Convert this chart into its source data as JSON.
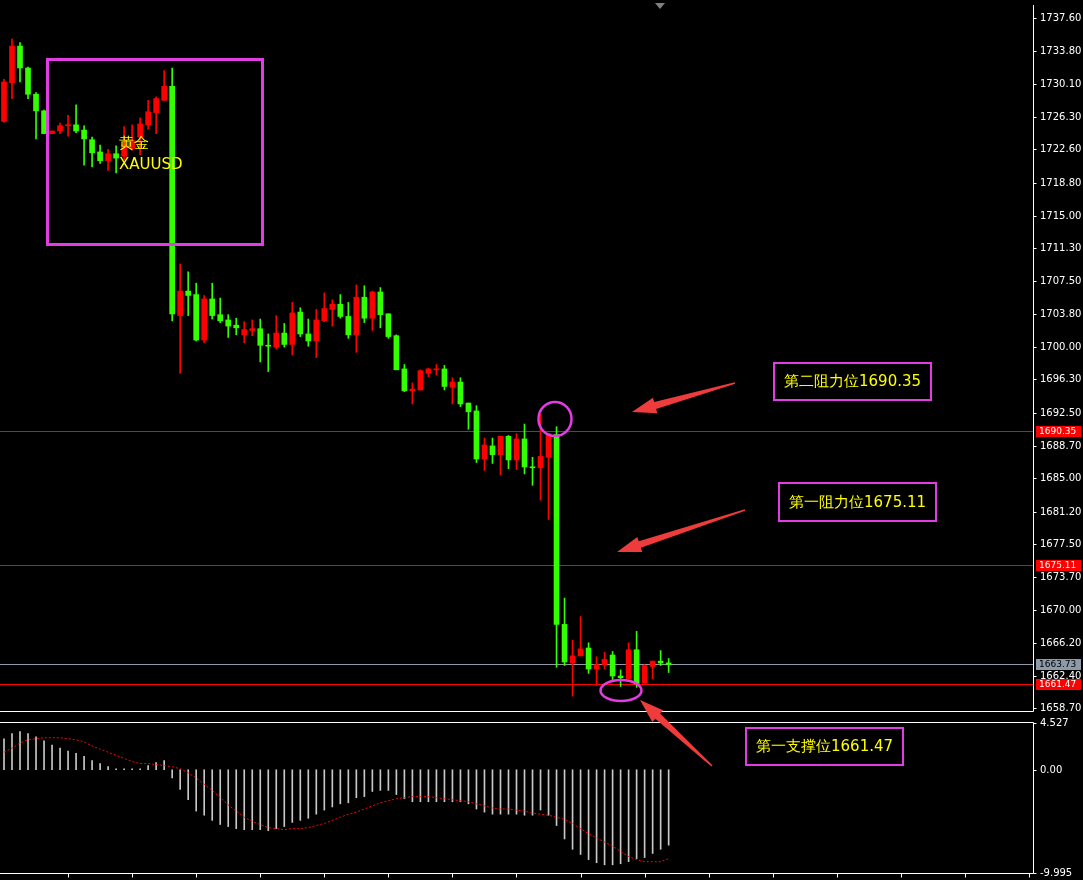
{
  "chart_data": [
    {
      "type": "candlestick",
      "categories": [
        null,
        null,
        null,
        null,
        null,
        null,
        null,
        null,
        null,
        null,
        null,
        null,
        null,
        null,
        null,
        null,
        null,
        null,
        null,
        null,
        null,
        null,
        null,
        null,
        null,
        null,
        null,
        null,
        null,
        null,
        null,
        null,
        null,
        null,
        null,
        null,
        null,
        null,
        null,
        null,
        null,
        null,
        null,
        null,
        null,
        null,
        null,
        null,
        null,
        null,
        null,
        null,
        null,
        null,
        null,
        null,
        null,
        null,
        null,
        null,
        null,
        null,
        null,
        null,
        null,
        null,
        null,
        null,
        null,
        null,
        null,
        null,
        null,
        null,
        null,
        null,
        null,
        null,
        null,
        null,
        null,
        null,
        null,
        null,
        null,
        null,
        null,
        null,
        null,
        null,
        null,
        null,
        null,
        null,
        null,
        null,
        null,
        null,
        null,
        null,
        null,
        null,
        null,
        null,
        null,
        null,
        null,
        null,
        null,
        null,
        null,
        null,
        null,
        null,
        null,
        null,
        null,
        null,
        null,
        null,
        null,
        null,
        null,
        null,
        null,
        null,
        null,
        null,
        null
      ],
      "ohlc": [
        [
          1725.8,
          1730.6,
          1725.7,
          1730.3
        ],
        [
          1730.2,
          1735.2,
          1728.4,
          1734.4
        ],
        [
          1734.4,
          1734.8,
          1730.3,
          1731.9
        ],
        [
          1731.9,
          1732.0,
          1728.4,
          1728.9
        ],
        [
          1728.9,
          1729.1,
          1723.8,
          1727.0
        ],
        [
          1727.0,
          1727.1,
          1724.4,
          1724.4
        ],
        [
          1724.4,
          1724.7,
          1724.4,
          1724.7
        ],
        [
          1724.7,
          1725.6,
          1724.4,
          1725.3
        ],
        [
          1725.3,
          1726.5,
          1724.1,
          1725.4
        ],
        [
          1725.4,
          1727.7,
          1724.5,
          1724.7
        ],
        [
          1724.8,
          1725.3,
          1720.8,
          1723.8
        ],
        [
          1723.7,
          1724.0,
          1720.6,
          1722.2
        ],
        [
          1722.3,
          1723.1,
          1721.0,
          1721.3
        ],
        [
          1721.3,
          1722.6,
          1720.2,
          1722.1
        ],
        [
          1722.1,
          1723.0,
          1719.9,
          1721.6
        ],
        [
          1721.8,
          1725.2,
          1721.4,
          1723.1
        ],
        [
          1722.7,
          1725.4,
          1722.5,
          1723.6
        ],
        [
          1724.0,
          1726.2,
          1722.0,
          1725.5
        ],
        [
          1725.4,
          1728.2,
          1724.9,
          1726.9
        ],
        [
          1726.8,
          1728.6,
          1724.4,
          1728.4
        ],
        [
          1728.2,
          1731.6,
          1728.2,
          1729.8
        ],
        [
          1729.8,
          1731.9,
          1703.0,
          1703.8
        ],
        [
          1703.6,
          1709.5,
          1697.0,
          1706.4
        ],
        [
          1706.4,
          1708.6,
          1703.6,
          1705.9
        ],
        [
          1706.0,
          1707.3,
          1700.7,
          1700.8
        ],
        [
          1700.8,
          1705.9,
          1700.5,
          1705.5
        ],
        [
          1705.5,
          1707.3,
          1703.2,
          1703.6
        ],
        [
          1703.7,
          1705.6,
          1702.8,
          1703.0
        ],
        [
          1703.1,
          1703.7,
          1701.1,
          1702.4
        ],
        [
          1702.5,
          1703.3,
          1701.4,
          1702.2
        ],
        [
          1701.4,
          1702.9,
          1700.5,
          1702.0
        ],
        [
          1701.9,
          1703.1,
          1701.3,
          1702.1
        ],
        [
          1702.1,
          1703.2,
          1698.3,
          1700.2
        ],
        [
          1700.2,
          1701.5,
          1697.2,
          1700.1
        ],
        [
          1700.0,
          1703.6,
          1699.8,
          1701.6
        ],
        [
          1701.6,
          1702.7,
          1700.0,
          1700.3
        ],
        [
          1700.3,
          1705.1,
          1699.1,
          1703.9
        ],
        [
          1704.0,
          1704.5,
          1701.2,
          1701.5
        ],
        [
          1701.5,
          1703.2,
          1700.1,
          1700.7
        ],
        [
          1700.7,
          1704.3,
          1698.8,
          1703.1
        ],
        [
          1703.0,
          1706.2,
          1702.9,
          1704.4
        ],
        [
          1704.3,
          1705.4,
          1702.4,
          1704.9
        ],
        [
          1704.9,
          1706.0,
          1703.3,
          1703.5
        ],
        [
          1703.5,
          1705.1,
          1701.0,
          1701.4
        ],
        [
          1701.4,
          1707.1,
          1699.4,
          1705.7
        ],
        [
          1705.7,
          1707.0,
          1702.8,
          1703.3
        ],
        [
          1703.3,
          1706.4,
          1701.9,
          1706.3
        ],
        [
          1706.3,
          1706.8,
          1702.2,
          1703.7
        ],
        [
          1703.8,
          1703.8,
          1701.0,
          1701.2
        ],
        [
          1701.3,
          1701.4,
          1697.4,
          1697.4
        ],
        [
          1697.5,
          1698.0,
          1694.9,
          1695.0
        ],
        [
          1695.0,
          1695.9,
          1693.5,
          1695.2
        ],
        [
          1695.1,
          1697.4,
          1695.1,
          1697.3
        ],
        [
          1697.0,
          1697.6,
          1696.6,
          1697.5
        ],
        [
          1697.4,
          1698.0,
          1696.8,
          1697.5
        ],
        [
          1697.5,
          1697.9,
          1695.1,
          1695.5
        ],
        [
          1695.4,
          1696.5,
          1693.5,
          1696.0
        ],
        [
          1696.0,
          1696.5,
          1693.2,
          1693.5
        ],
        [
          1693.6,
          1693.6,
          1690.6,
          1692.6
        ],
        [
          1692.7,
          1693.3,
          1686.8,
          1687.2
        ],
        [
          1687.2,
          1689.6,
          1685.9,
          1688.8
        ],
        [
          1688.7,
          1689.6,
          1686.7,
          1687.7
        ],
        [
          1687.7,
          1689.8,
          1685.4,
          1689.8
        ],
        [
          1689.8,
          1689.9,
          1686.1,
          1687.1
        ],
        [
          1687.1,
          1690.1,
          1686.0,
          1689.5
        ],
        [
          1689.5,
          1691.2,
          1685.5,
          1686.3
        ],
        [
          1686.3,
          1687.4,
          1684.2,
          1686.2
        ],
        [
          1686.2,
          1692.3,
          1682.5,
          1687.5
        ],
        [
          1687.4,
          1690.1,
          1680.3,
          1690.1
        ],
        [
          1690.0,
          1690.9,
          1663.4,
          1668.3
        ],
        [
          1668.3,
          1671.3,
          1663.6,
          1664.0
        ],
        [
          1663.9,
          1666.5,
          1660.1,
          1664.7
        ],
        [
          1664.7,
          1669.2,
          1664.7,
          1665.5
        ],
        [
          1665.6,
          1666.2,
          1662.7,
          1663.2
        ],
        [
          1663.2,
          1664.6,
          1661.3,
          1663.7
        ],
        [
          1663.7,
          1665.1,
          1663.2,
          1664.3
        ],
        [
          1664.8,
          1665.2,
          1661.9,
          1662.4
        ],
        [
          1662.4,
          1663.1,
          1661.2,
          1662.2
        ],
        [
          1662.1,
          1666.2,
          1662.1,
          1665.4
        ],
        [
          1665.4,
          1667.5,
          1661.1,
          1661.5
        ],
        [
          1661.6,
          1663.7,
          1661.6,
          1663.6
        ],
        [
          1663.5,
          1664.1,
          1662.1,
          1664.1
        ],
        [
          1664.1,
          1665.3,
          1663.6,
          1663.9
        ],
        [
          1663.9,
          1664.4,
          1662.8,
          1663.7
        ],
        null,
        null,
        null,
        null,
        null,
        null,
        null,
        null,
        null,
        null,
        null,
        null,
        null,
        null,
        null,
        null,
        null,
        null,
        null,
        null,
        null,
        null,
        null,
        null,
        null,
        null,
        null,
        null,
        null,
        null,
        null,
        null,
        null,
        null,
        null,
        null,
        null,
        null,
        null,
        null,
        null,
        null,
        null,
        null,
        null
      ],
      "colors": [
        "#ff0000",
        "#ff0000",
        "#33ff00",
        "#33ff00",
        "#33ff00",
        "#33ff00",
        "#ff0000",
        "#ff0000",
        "#ff0000",
        "#33ff00",
        "#33ff00",
        "#33ff00",
        "#33ff00",
        "#ff0000",
        "#33ff00",
        "#ff0000",
        "#ff0000",
        "#ff0000",
        "#ff0000",
        "#ff0000",
        "#ff0000",
        "#33ff00",
        "#ff0000",
        "#33ff00",
        "#33ff00",
        "#ff0000",
        "#33ff00",
        "#33ff00",
        "#33ff00",
        "#33ff00",
        "#ff0000",
        "#ff0000",
        "#33ff00",
        "#33ff00",
        "#ff0000",
        "#33ff00",
        "#ff0000",
        "#33ff00",
        "#33ff00",
        "#ff0000",
        "#ff0000",
        "#ff0000",
        "#33ff00",
        "#33ff00",
        "#ff0000",
        "#33ff00",
        "#ff0000",
        "#33ff00",
        "#33ff00",
        "#33ff00",
        "#33ff00",
        "#ff0000",
        "#ff0000",
        "#ff0000",
        "#ff0000",
        "#33ff00",
        "#ff0000",
        "#33ff00",
        "#33ff00",
        "#33ff00",
        "#ff0000",
        "#33ff00",
        "#ff0000",
        "#33ff00",
        "#ff0000",
        "#33ff00",
        "#33ff00",
        "#ff0000",
        "#ff0000",
        "#33ff00",
        "#33ff00",
        "#ff0000",
        "#ff0000",
        "#33ff00",
        "#ff0000",
        "#ff0000",
        "#33ff00",
        "#33ff00",
        "#ff0000",
        "#33ff00",
        "#ff0000",
        "#ff0000",
        "#33ff00",
        "#33ff00",
        null,
        null,
        null,
        null,
        null,
        null,
        null,
        null,
        null,
        null,
        null,
        null,
        null,
        null,
        null,
        null,
        null,
        null,
        null,
        null,
        null,
        null,
        null,
        null,
        null,
        null,
        null,
        null,
        null,
        null,
        null,
        null,
        null,
        null,
        null,
        null,
        null,
        null,
        null,
        null,
        null,
        null,
        null,
        null,
        null
      ],
      "ylim": [
        1658.4,
        1739.1
      ],
      "yticks": [
        {
          "value": 1737.6,
          "label": "1737.60"
        },
        {
          "value": 1733.8,
          "label": "1733.80"
        },
        {
          "value": 1730.1,
          "label": "1730.10"
        },
        {
          "value": 1726.3,
          "label": "1726.30"
        },
        {
          "value": 1722.6,
          "label": "1722.60"
        },
        {
          "value": 1718.8,
          "label": "1718.80"
        },
        {
          "value": 1715,
          "label": "1715.00"
        },
        {
          "value": 1711.3,
          "label": "1711.30"
        },
        {
          "value": 1707.5,
          "label": "1707.50"
        },
        {
          "value": 1703.8,
          "label": "1703.80"
        },
        {
          "value": 1700,
          "label": "1700.00"
        },
        {
          "value": 1696.3,
          "label": "1696.30"
        },
        {
          "value": 1692.5,
          "label": "1692.50"
        },
        {
          "value": 1688.7,
          "label": "1688.70"
        },
        {
          "value": 1685,
          "label": "1685.00"
        },
        {
          "value": 1681.2,
          "label": "1681.20"
        },
        {
          "value": 1677.5,
          "label": "1677.50"
        },
        {
          "value": 1673.7,
          "label": "1673.70"
        },
        {
          "value": 1670,
          "label": "1670.00"
        },
        {
          "value": 1666.2,
          "label": "1666.20"
        },
        {
          "value": 1662.4,
          "label": "1662.40"
        },
        {
          "value": 1658.7,
          "label": "1658.70"
        }
      ],
      "tick_labels": "y",
      "ref_lines": [
        {
          "axis": "y",
          "value": 1690.35,
          "label": "1690.35",
          "color": "#ff0000"
        },
        {
          "axis": "y",
          "value": 1675.11,
          "label": "1675.11",
          "color": "#ff0000"
        },
        {
          "axis": "y",
          "value": 1663.73,
          "label": "1663.73",
          "color": "#8c9aaa"
        },
        {
          "axis": "y",
          "value": 1661.47,
          "label": "1661.47",
          "color": "#ff0000"
        }
      ],
      "annotations": [
        "第二阻力位1690.35",
        "第一阻力位1675.11",
        "第一支撑位1661.47",
        "黄金",
        "XAUUSD"
      ]
    },
    {
      "type": "bar",
      "categories": [
        null,
        null,
        null,
        null,
        null,
        null,
        null,
        null,
        null,
        null,
        null,
        null,
        null,
        null,
        null,
        null,
        null,
        null,
        null,
        null,
        null,
        null,
        null,
        null,
        null,
        null,
        null,
        null,
        null,
        null,
        null,
        null,
        null,
        null,
        null,
        null,
        null,
        null,
        null,
        null,
        null,
        null,
        null,
        null,
        null,
        null,
        null,
        null,
        null,
        null,
        null,
        null,
        null,
        null,
        null,
        null,
        null,
        null,
        null,
        null,
        null,
        null,
        null,
        null,
        null,
        null,
        null,
        null,
        null,
        null,
        null,
        null,
        null,
        null,
        null,
        null,
        null,
        null,
        null,
        null,
        null,
        null,
        null,
        null,
        null,
        null,
        null,
        null,
        null,
        null,
        null,
        null,
        null,
        null,
        null,
        null,
        null,
        null,
        null,
        null,
        null,
        null,
        null,
        null,
        null,
        null,
        null,
        null,
        null,
        null,
        null,
        null,
        null,
        null,
        null,
        null,
        null,
        null,
        null,
        null,
        null,
        null,
        null,
        null,
        null,
        null,
        null,
        null,
        null
      ],
      "series": [
        {
          "color": "#c8c8c8",
          "values": [
            3.0,
            3.5,
            3.7,
            3.5,
            3.2,
            2.8,
            2.4,
            2.1,
            1.8,
            1.6,
            1.3,
            0.9,
            0.6,
            0.3,
            0.1,
            0.1,
            0.1,
            0.1,
            0.4,
            0.7,
            0.9,
            -0.8,
            -1.9,
            -2.9,
            -4.0,
            -4.4,
            -4.9,
            -5.3,
            -5.5,
            -5.7,
            -5.8,
            -5.8,
            -5.8,
            -5.9,
            -5.7,
            -5.5,
            -5.1,
            -4.9,
            -4.7,
            -4.3,
            -3.9,
            -3.6,
            -3.3,
            -3.2,
            -2.7,
            -2.6,
            -2.1,
            -2.0,
            -2.0,
            -2.4,
            -2.8,
            -3.1,
            -3.1,
            -3.1,
            -3.1,
            -3.1,
            -3.1,
            -3.1,
            -3.3,
            -3.8,
            -4.1,
            -4.3,
            -4.3,
            -4.3,
            -4.3,
            -4.4,
            -4.4,
            -3.9,
            -4.4,
            -5.4,
            -6.7,
            -7.7,
            -8.2,
            -8.7,
            -9.0,
            -9.2,
            -9.2,
            -9.1,
            -8.9,
            -8.6,
            -8.5,
            -8.1,
            -7.7,
            -7.3,
            null,
            null,
            null,
            null,
            null,
            null,
            null,
            null,
            null,
            null,
            null,
            null,
            null,
            null,
            null,
            null,
            null,
            null,
            null,
            null,
            null,
            null,
            null,
            null,
            null,
            null,
            null,
            null,
            null,
            null,
            null,
            null,
            null,
            null,
            null,
            null,
            null,
            null,
            null,
            null,
            null,
            null,
            null,
            null,
            null
          ]
        },
        {
          "type": "line",
          "color": "#ff0000",
          "values": [
            1.7,
            2.1,
            2.6,
            2.9,
            3.0,
            3.1,
            3.1,
            3.1,
            3.0,
            2.9,
            2.7,
            2.3,
            2.0,
            1.7,
            1.4,
            1.1,
            0.8,
            0.6,
            0.6,
            0.5,
            0.4,
            0.3,
            0.1,
            -0.3,
            -0.8,
            -1.4,
            -2.0,
            -2.7,
            -3.4,
            -4.0,
            -4.6,
            -5.0,
            -5.3,
            -5.6,
            -5.7,
            -5.8,
            -5.7,
            -5.7,
            -5.6,
            -5.4,
            -5.2,
            -4.9,
            -4.6,
            -4.3,
            -4.1,
            -3.8,
            -3.5,
            -3.2,
            -3.0,
            -2.8,
            -2.7,
            -2.6,
            -2.6,
            -2.6,
            -2.7,
            -2.8,
            -2.9,
            -3.0,
            -3.1,
            -3.3,
            -3.5,
            -3.7,
            -3.8,
            -3.8,
            -3.9,
            -4.0,
            -4.2,
            -4.3,
            -4.4,
            -4.6,
            -4.8,
            -5.2,
            -5.7,
            -6.2,
            -6.6,
            -7.0,
            -7.4,
            -7.9,
            -8.4,
            -8.7,
            -8.9,
            -8.9,
            -8.9,
            -8.6,
            null,
            null,
            null,
            null,
            null,
            null,
            null,
            null,
            null,
            null,
            null,
            null,
            null,
            null,
            null,
            null,
            null,
            null,
            null,
            null,
            null,
            null,
            null,
            null,
            null,
            null,
            null,
            null,
            null,
            null,
            null,
            null,
            null,
            null,
            null,
            null,
            null,
            null,
            null,
            null,
            null,
            null,
            null,
            null,
            null
          ]
        }
      ],
      "ylim": [
        -9.995,
        4.527
      ],
      "yticks": [
        4.527,
        {
          "value": 0,
          "label": "0.00"
        },
        -9.995
      ],
      "tick_labels": "y",
      "line_style": "dotted",
      "marker": "none"
    }
  ]
}
